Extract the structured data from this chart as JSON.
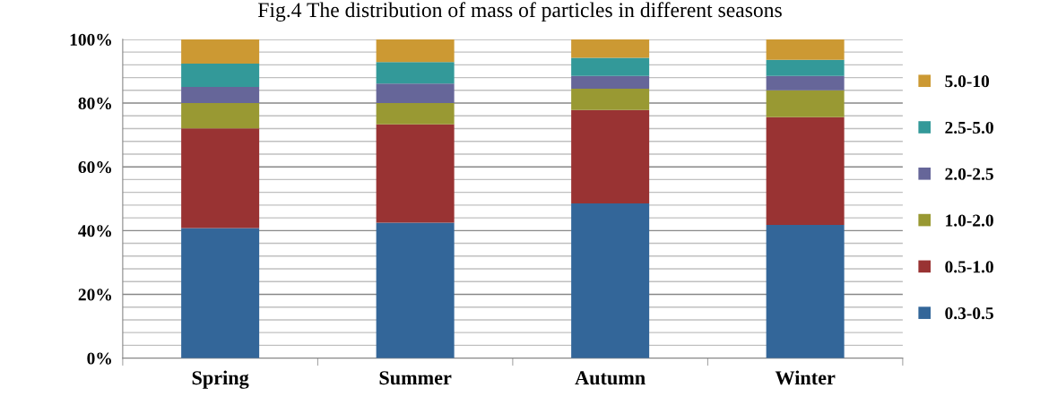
{
  "chart_data": {
    "type": "bar",
    "title": "Fig.4 The distribution of mass of particles in different seasons",
    "stacked": true,
    "categories": [
      "Spring",
      "Summer",
      "Autumn",
      "Winter"
    ],
    "series": [
      {
        "name": "0.3-0.5",
        "color": "#336699",
        "values": [
          40.8,
          42.5,
          48.5,
          41.8
        ]
      },
      {
        "name": "0.5-1.0",
        "color": "#993333",
        "values": [
          31.3,
          30.8,
          29.3,
          33.8
        ]
      },
      {
        "name": "1.0-2.0",
        "color": "#999933",
        "values": [
          7.9,
          6.7,
          6.7,
          8.4
        ]
      },
      {
        "name": "2.0-2.5",
        "color": "#666699",
        "values": [
          5.1,
          6.1,
          4.0,
          4.5
        ]
      },
      {
        "name": "2.5-5.0",
        "color": "#339999",
        "values": [
          7.3,
          6.8,
          5.7,
          5.1
        ]
      },
      {
        "name": "5.0-10",
        "color": "#cc9933",
        "values": [
          7.6,
          7.1,
          5.8,
          6.4
        ]
      }
    ],
    "ylim": [
      0,
      100
    ],
    "yticks": [
      {
        "value": 0,
        "label": "0%"
      },
      {
        "value": 20,
        "label": "20%"
      },
      {
        "value": 40,
        "label": "40%"
      },
      {
        "value": 60,
        "label": "60%"
      },
      {
        "value": 80,
        "label": "80%"
      },
      {
        "value": 100,
        "label": "100%"
      }
    ],
    "grid": "y",
    "legend": "right"
  }
}
